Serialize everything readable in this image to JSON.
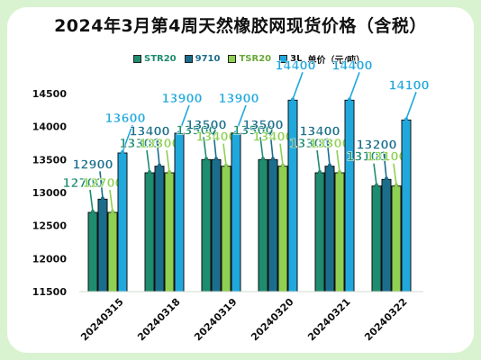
{
  "title": "2024年3月第4周天然橡胶网现货价格（含税）",
  "chart_data": {
    "type": "bar",
    "title": "2024年3月第4周天然橡胶网现货价格（含税）",
    "unit_label": "单价（元/吨）",
    "categories": [
      "20240315",
      "20240318",
      "20240319",
      "20240320",
      "20240321",
      "20240322"
    ],
    "series": [
      {
        "name": "STR20",
        "color": "#1e8c6f",
        "values": [
          12700,
          13300,
          13500,
          13500,
          13300,
          13100
        ]
      },
      {
        "name": "9710",
        "color": "#1a6e8c",
        "values": [
          12900,
          13400,
          13500,
          13500,
          13400,
          13200
        ]
      },
      {
        "name": "TSR20",
        "color": "#8fcf52",
        "values": [
          12700,
          13300,
          13400,
          13400,
          13300,
          13100
        ]
      },
      {
        "name": "3L",
        "color": "#20a8dd",
        "values": [
          13600,
          13900,
          13900,
          14400,
          14400,
          14100
        ]
      }
    ],
    "ylim": [
      11500,
      14500
    ],
    "yticks": [
      11500,
      12000,
      12500,
      13000,
      13500,
      14000,
      14500
    ],
    "grid": false,
    "legend": "top"
  }
}
